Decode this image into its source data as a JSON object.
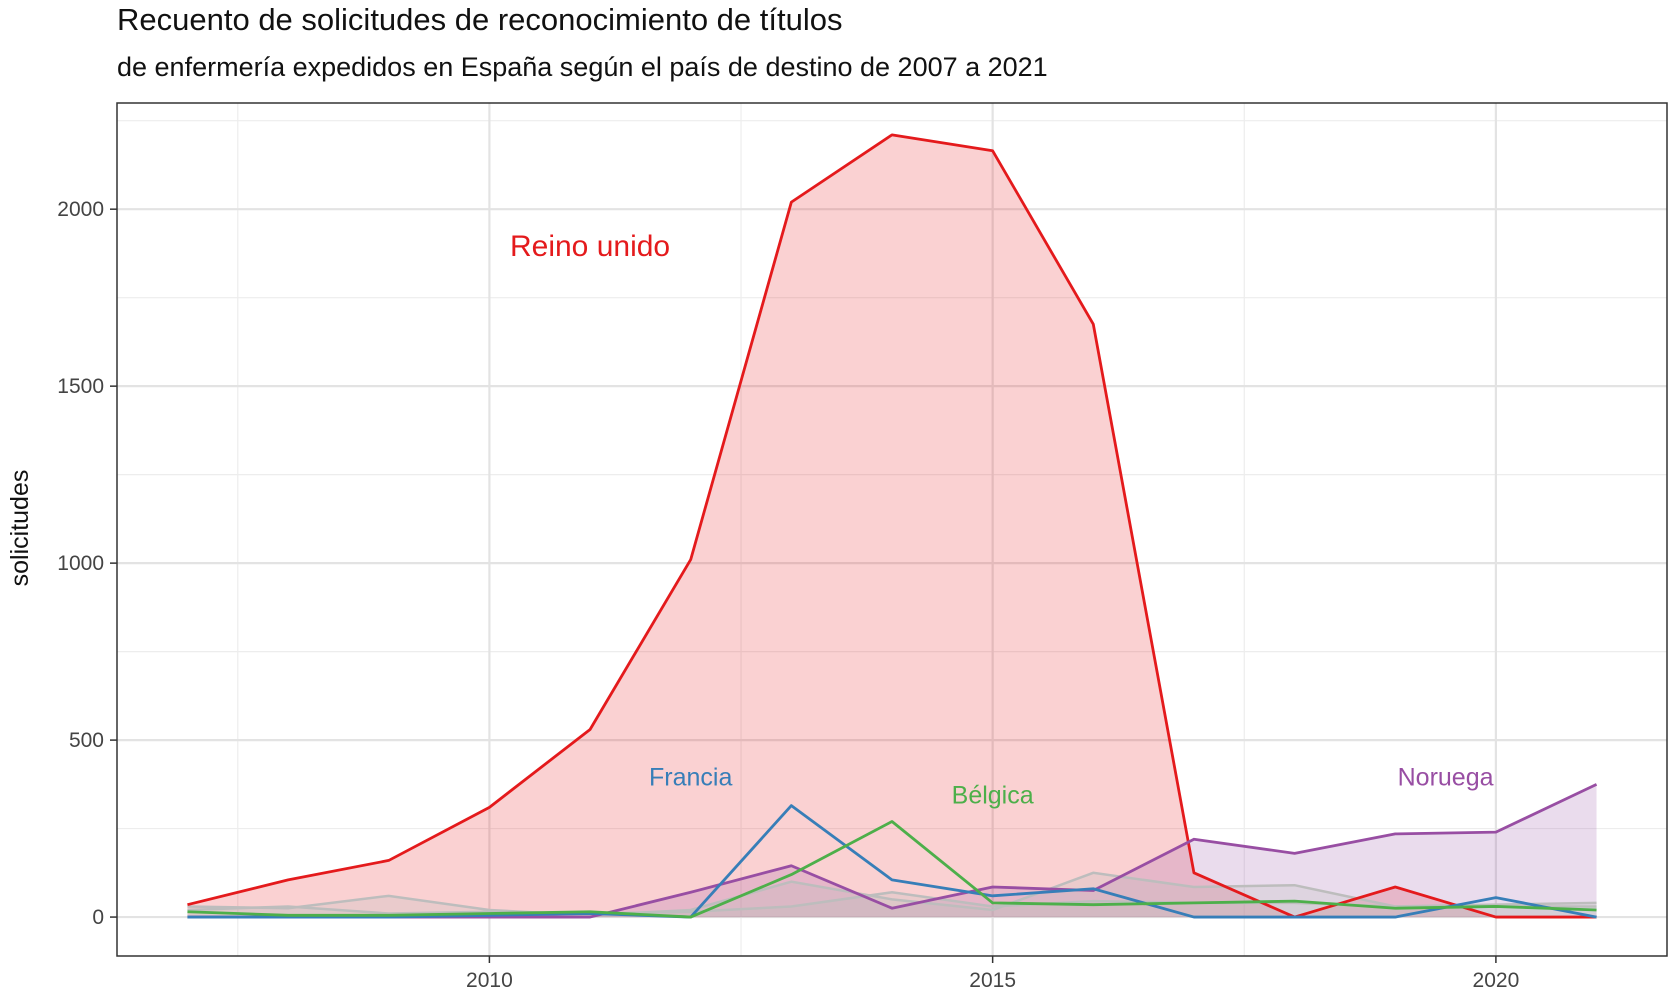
{
  "title": "Recuento de solicitudes de reconocimiento de títulos",
  "subtitle": "de enfermería expedidos en España según el país de destino de 2007 a 2021",
  "chart_data": {
    "type": "area",
    "title": "Recuento de solicitudes de reconocimiento de títulos",
    "subtitle": "de enfermería expedidos en España según el país de destino de 2007 a 2021",
    "xlabel": "",
    "ylabel": "solicitudes",
    "xlim": [
      2006.3,
      2021.7
    ],
    "ylim": [
      -110,
      2300
    ],
    "x_ticks": [
      2010,
      2015,
      2020
    ],
    "y_ticks": [
      0,
      500,
      1000,
      1500,
      2000
    ],
    "grid": true,
    "x": [
      2007,
      2008,
      2009,
      2010,
      2011,
      2012,
      2013,
      2014,
      2015,
      2016,
      2017,
      2018,
      2019,
      2020,
      2021
    ],
    "series": [
      {
        "name": "Reino unido",
        "color": "#e41a1c",
        "filled": true,
        "values": [
          35,
          105,
          160,
          310,
          530,
          1010,
          2020,
          2210,
          2165,
          1675,
          125,
          0,
          85,
          0,
          0
        ]
      },
      {
        "name": "Noruega",
        "color": "#984ea3",
        "filled": true,
        "values": [
          0,
          0,
          0,
          0,
          0,
          70,
          145,
          25,
          85,
          75,
          220,
          180,
          235,
          240,
          375
        ]
      },
      {
        "name": "Francia",
        "color": "#377eb8",
        "filled": false,
        "values": [
          0,
          0,
          0,
          5,
          10,
          0,
          315,
          105,
          60,
          80,
          0,
          0,
          0,
          55,
          0
        ]
      },
      {
        "name": "Bélgica",
        "color": "#4daf4a",
        "filled": false,
        "values": [
          15,
          5,
          5,
          10,
          15,
          0,
          120,
          270,
          40,
          35,
          40,
          45,
          25,
          30,
          20
        ]
      }
    ],
    "other_series": [
      {
        "color": "#bdbdbd",
        "values": [
          30,
          25,
          60,
          20,
          5,
          20,
          100,
          50,
          20,
          125,
          85,
          90,
          30,
          35,
          40
        ]
      },
      {
        "color": "#bdbdbd",
        "values": [
          20,
          30,
          10,
          15,
          10,
          15,
          30,
          70,
          30,
          45,
          40,
          40,
          30,
          30,
          30
        ]
      }
    ],
    "annotations": [
      {
        "text": "Reino unido",
        "color": "#e41a1c",
        "x": 2011,
        "y": 1890,
        "size": "large"
      },
      {
        "text": "Francia",
        "color": "#377eb8",
        "x": 2012,
        "y": 390,
        "size": "small"
      },
      {
        "text": "Bélgica",
        "color": "#4daf4a",
        "x": 2015,
        "y": 340,
        "size": "small"
      },
      {
        "text": "Noruega",
        "color": "#984ea3",
        "x": 2019.5,
        "y": 390,
        "size": "small"
      }
    ]
  }
}
